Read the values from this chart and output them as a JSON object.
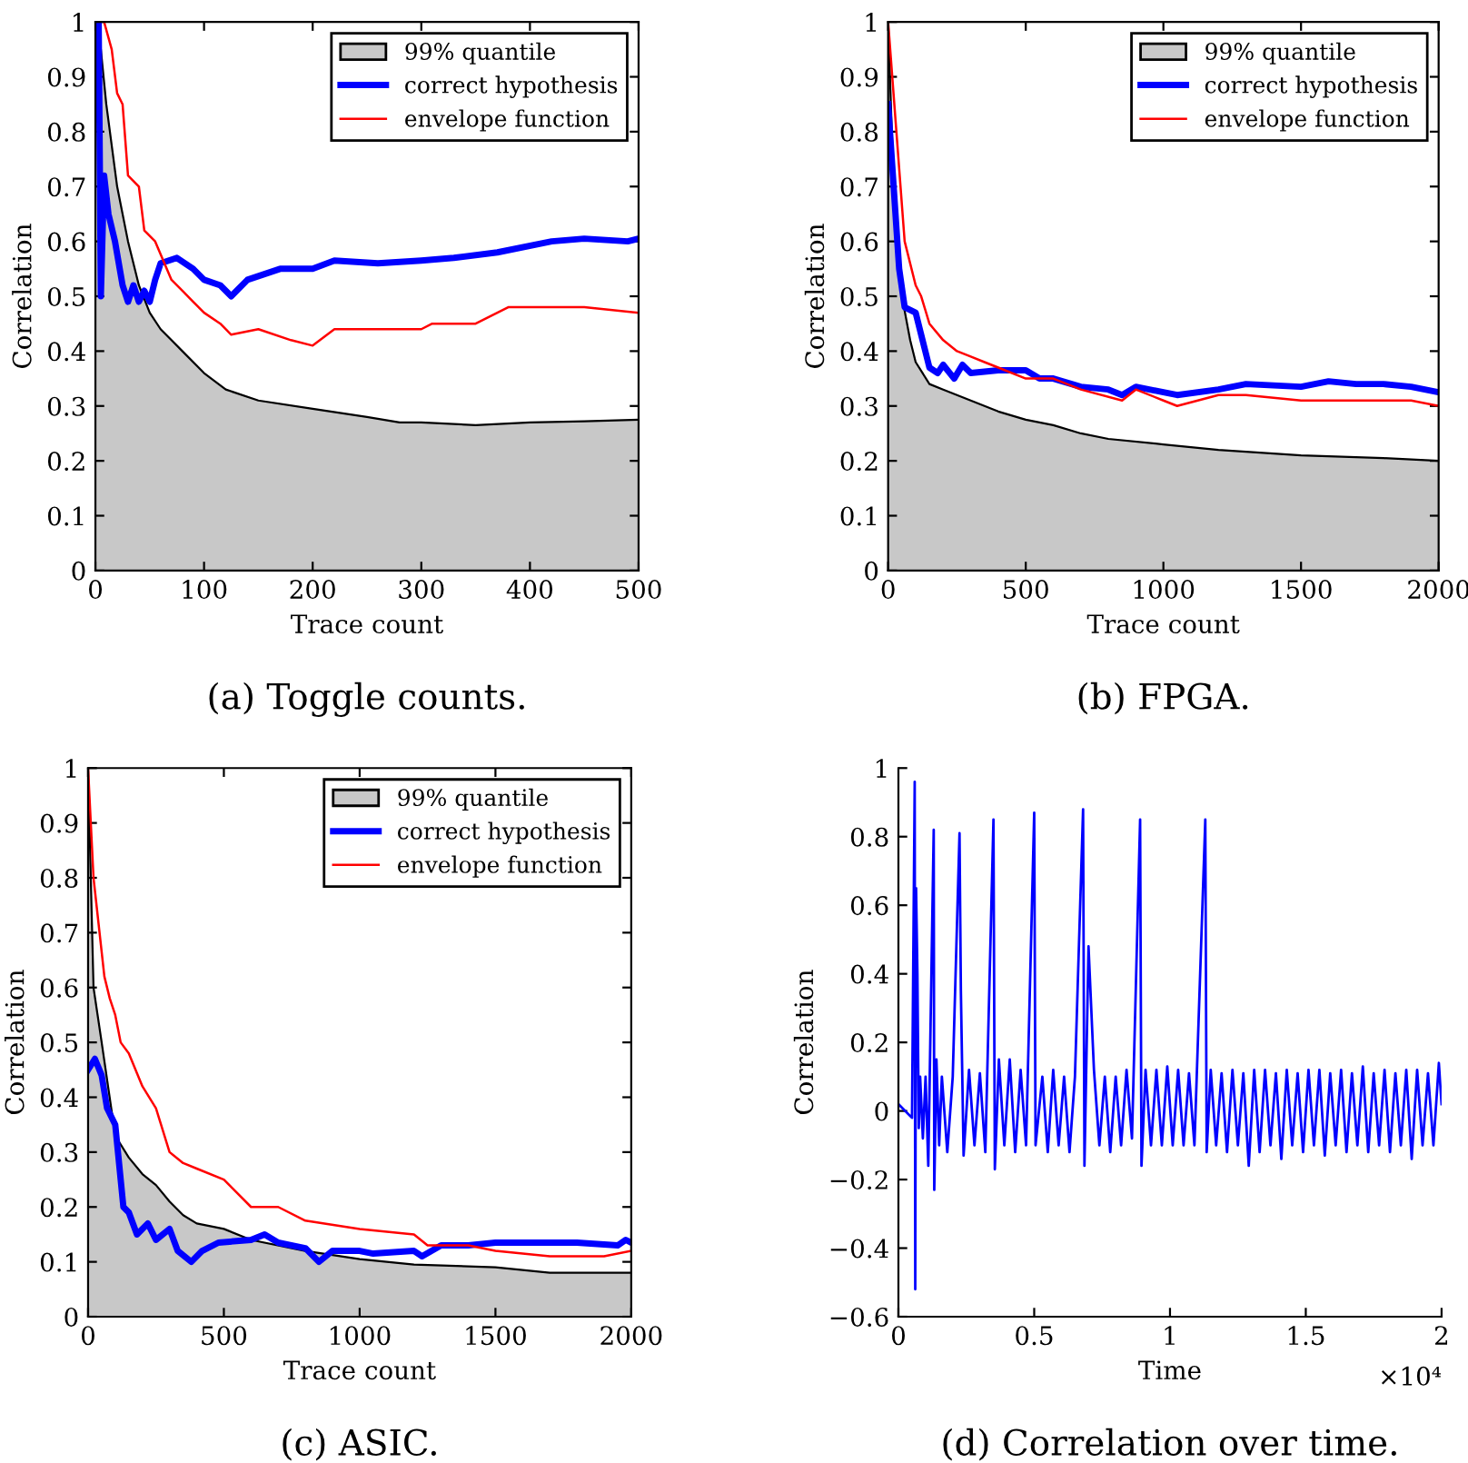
{
  "chart_data": [
    {
      "type": "line",
      "title": "(a) Toggle counts.",
      "xlabel": "Trace count",
      "ylabel": "Correlation",
      "xlim": [
        0,
        500
      ],
      "xticks": [
        0,
        100,
        200,
        300,
        400,
        500
      ],
      "ylim": [
        0,
        1
      ],
      "yticks": [
        0,
        0.1,
        0.2,
        0.3,
        0.4,
        0.5,
        0.6,
        0.7,
        0.8,
        0.9,
        1
      ],
      "legend": "top right",
      "grid": false,
      "series": [
        {
          "name": "99% quantile",
          "type": "area",
          "color": "#c8c8c8",
          "x": [
            0,
            5,
            10,
            20,
            30,
            40,
            50,
            60,
            70,
            80,
            100,
            120,
            150,
            200,
            250,
            280,
            300,
            350,
            400,
            450,
            500
          ],
          "values": [
            1.0,
            0.95,
            0.85,
            0.7,
            0.6,
            0.52,
            0.47,
            0.44,
            0.42,
            0.4,
            0.36,
            0.33,
            0.31,
            0.295,
            0.28,
            0.27,
            0.27,
            0.265,
            0.27,
            0.272,
            0.275
          ]
        },
        {
          "name": "correct hypothesis",
          "color": "#0000ff",
          "x": [
            3,
            5,
            8,
            12,
            18,
            25,
            30,
            35,
            40,
            45,
            50,
            55,
            60,
            75,
            90,
            100,
            115,
            125,
            140,
            170,
            200,
            220,
            260,
            300,
            330,
            370,
            420,
            450,
            490,
            500
          ],
          "values": [
            1.0,
            0.5,
            0.72,
            0.65,
            0.6,
            0.52,
            0.49,
            0.52,
            0.49,
            0.51,
            0.49,
            0.53,
            0.56,
            0.57,
            0.55,
            0.53,
            0.52,
            0.5,
            0.53,
            0.55,
            0.55,
            0.565,
            0.56,
            0.565,
            0.57,
            0.58,
            0.6,
            0.605,
            0.6,
            0.605
          ]
        },
        {
          "name": "envelope function",
          "color": "#ff0000",
          "x": [
            8,
            15,
            20,
            25,
            30,
            40,
            45,
            55,
            70,
            80,
            90,
            100,
            115,
            125,
            150,
            180,
            200,
            220,
            250,
            300,
            310,
            350,
            380,
            420,
            450,
            500
          ],
          "values": [
            1.0,
            0.95,
            0.87,
            0.85,
            0.72,
            0.7,
            0.62,
            0.6,
            0.53,
            0.51,
            0.49,
            0.47,
            0.45,
            0.43,
            0.44,
            0.42,
            0.41,
            0.44,
            0.44,
            0.44,
            0.45,
            0.45,
            0.48,
            0.48,
            0.48,
            0.47
          ]
        }
      ]
    },
    {
      "type": "line",
      "title": "(b) FPGA.",
      "xlabel": "Trace count",
      "ylabel": "Correlation",
      "xlim": [
        0,
        2000
      ],
      "xticks": [
        0,
        500,
        1000,
        1500,
        2000
      ],
      "ylim": [
        0,
        1
      ],
      "yticks": [
        0,
        0.1,
        0.2,
        0.3,
        0.4,
        0.5,
        0.6,
        0.7,
        0.8,
        0.9,
        1
      ],
      "legend": "top right",
      "grid": false,
      "series": [
        {
          "name": "99% quantile",
          "type": "area",
          "color": "#c8c8c8",
          "x": [
            0,
            20,
            50,
            80,
            100,
            150,
            200,
            300,
            400,
            500,
            600,
            700,
            800,
            1000,
            1200,
            1500,
            1800,
            2000
          ],
          "values": [
            1.0,
            0.7,
            0.5,
            0.42,
            0.38,
            0.34,
            0.33,
            0.31,
            0.29,
            0.275,
            0.265,
            0.25,
            0.24,
            0.23,
            0.22,
            0.21,
            0.205,
            0.2
          ]
        },
        {
          "name": "correct hypothesis",
          "color": "#0000ff",
          "x": [
            0,
            20,
            40,
            60,
            100,
            120,
            150,
            180,
            200,
            240,
            270,
            300,
            400,
            500,
            550,
            600,
            700,
            800,
            850,
            900,
            1000,
            1050,
            1200,
            1300,
            1500,
            1600,
            1700,
            1800,
            1900,
            2000
          ],
          "values": [
            0.85,
            0.7,
            0.55,
            0.48,
            0.47,
            0.43,
            0.37,
            0.36,
            0.375,
            0.35,
            0.375,
            0.36,
            0.365,
            0.365,
            0.35,
            0.35,
            0.335,
            0.33,
            0.32,
            0.335,
            0.325,
            0.32,
            0.33,
            0.34,
            0.335,
            0.345,
            0.34,
            0.34,
            0.335,
            0.325
          ]
        },
        {
          "name": "envelope function",
          "color": "#ff0000",
          "x": [
            0,
            30,
            60,
            100,
            120,
            150,
            200,
            250,
            300,
            350,
            400,
            500,
            600,
            700,
            850,
            900,
            1000,
            1050,
            1200,
            1300,
            1500,
            1700,
            1900,
            2000
          ],
          "values": [
            1.0,
            0.8,
            0.6,
            0.52,
            0.5,
            0.45,
            0.42,
            0.4,
            0.39,
            0.38,
            0.37,
            0.35,
            0.35,
            0.33,
            0.31,
            0.33,
            0.31,
            0.3,
            0.32,
            0.32,
            0.31,
            0.31,
            0.31,
            0.3
          ]
        }
      ]
    },
    {
      "type": "line",
      "title": "(c) ASIC.",
      "xlabel": "Trace count",
      "ylabel": "Correlation",
      "xlim": [
        0,
        2000
      ],
      "xticks": [
        0,
        500,
        1000,
        1500,
        2000
      ],
      "ylim": [
        0,
        1
      ],
      "yticks": [
        0,
        0.1,
        0.2,
        0.3,
        0.4,
        0.5,
        0.6,
        0.7,
        0.8,
        0.9,
        1
      ],
      "legend": "top right",
      "grid": false,
      "series": [
        {
          "name": "99% quantile",
          "type": "area",
          "color": "#c8c8c8",
          "x": [
            0,
            20,
            50,
            100,
            150,
            200,
            250,
            300,
            350,
            400,
            500,
            600,
            800,
            1000,
            1200,
            1500,
            1700,
            2000
          ],
          "values": [
            1.0,
            0.6,
            0.5,
            0.33,
            0.29,
            0.26,
            0.24,
            0.21,
            0.185,
            0.17,
            0.16,
            0.14,
            0.12,
            0.105,
            0.095,
            0.09,
            0.08,
            0.08
          ]
        },
        {
          "name": "correct hypothesis",
          "color": "#0000ff",
          "x": [
            0,
            25,
            50,
            70,
            100,
            130,
            150,
            180,
            220,
            250,
            300,
            330,
            380,
            420,
            480,
            600,
            650,
            700,
            800,
            850,
            900,
            1000,
            1050,
            1200,
            1230,
            1300,
            1400,
            1500,
            1600,
            1800,
            1950,
            1980,
            2000
          ],
          "values": [
            0.45,
            0.47,
            0.44,
            0.38,
            0.35,
            0.2,
            0.19,
            0.15,
            0.17,
            0.14,
            0.16,
            0.12,
            0.1,
            0.12,
            0.135,
            0.14,
            0.15,
            0.135,
            0.125,
            0.1,
            0.12,
            0.12,
            0.115,
            0.12,
            0.11,
            0.13,
            0.13,
            0.135,
            0.135,
            0.135,
            0.13,
            0.14,
            0.135
          ]
        },
        {
          "name": "envelope function",
          "color": "#ff0000",
          "x": [
            0,
            20,
            60,
            80,
            100,
            120,
            150,
            200,
            250,
            300,
            350,
            400,
            500,
            600,
            700,
            800,
            1000,
            1200,
            1250,
            1400,
            1500,
            1700,
            1900,
            2000
          ],
          "values": [
            1.0,
            0.8,
            0.62,
            0.58,
            0.55,
            0.5,
            0.48,
            0.42,
            0.38,
            0.3,
            0.28,
            0.27,
            0.25,
            0.2,
            0.2,
            0.175,
            0.16,
            0.15,
            0.13,
            0.13,
            0.12,
            0.11,
            0.11,
            0.12
          ]
        }
      ]
    },
    {
      "type": "line",
      "title": "(d) Correlation over time.",
      "xlabel": "Time",
      "ylabel": "Correlation",
      "xlim": [
        0,
        2
      ],
      "xticks": [
        0,
        0.5,
        1,
        1.5,
        2
      ],
      "ylim": [
        -0.6,
        1
      ],
      "yticks": [
        {
          "value": -0.6,
          "label": "−0.6"
        },
        {
          "value": -0.4,
          "label": "−0.4"
        },
        {
          "value": -0.2,
          "label": "−0.2"
        },
        0,
        0.2,
        0.4,
        0.6,
        0.8,
        1
      ],
      "annotations": [
        "×10⁴"
      ],
      "grid": false,
      "legend": false,
      "series": [
        {
          "color": "#0000ff",
          "x": [
            0,
            0.05,
            0.06,
            0.062,
            0.065,
            0.07,
            0.075,
            0.08,
            0.09,
            0.1,
            0.11,
            0.13,
            0.132,
            0.14,
            0.15,
            0.16,
            0.18,
            0.2,
            0.225,
            0.23,
            0.24,
            0.26,
            0.28,
            0.3,
            0.32,
            0.35,
            0.355,
            0.37,
            0.39,
            0.41,
            0.43,
            0.45,
            0.47,
            0.5,
            0.505,
            0.53,
            0.55,
            0.57,
            0.59,
            0.61,
            0.63,
            0.65,
            0.68,
            0.685,
            0.7,
            0.72,
            0.74,
            0.76,
            0.78,
            0.8,
            0.82,
            0.84,
            0.86,
            0.89,
            0.895,
            0.91,
            0.93,
            0.95,
            0.97,
            0.99,
            1.01,
            1.03,
            1.05,
            1.07,
            1.09,
            1.13,
            1.135,
            1.15,
            1.17,
            1.19,
            1.21,
            1.23,
            1.25,
            1.27,
            1.29,
            1.31,
            1.33,
            1.35,
            1.37,
            1.39,
            1.41,
            1.43,
            1.45,
            1.47,
            1.49,
            1.51,
            1.53,
            1.55,
            1.57,
            1.59,
            1.61,
            1.63,
            1.65,
            1.67,
            1.69,
            1.71,
            1.73,
            1.75,
            1.77,
            1.79,
            1.81,
            1.83,
            1.85,
            1.87,
            1.89,
            1.91,
            1.93,
            1.95,
            1.97,
            1.99,
            2
          ],
          "values": [
            0.02,
            -0.02,
            0.96,
            -0.52,
            0.65,
            0.4,
            -0.05,
            0.1,
            -0.08,
            0.1,
            -0.16,
            0.82,
            -0.23,
            0.15,
            -0.1,
            0.1,
            -0.12,
            0.1,
            0.81,
            0.35,
            -0.13,
            0.12,
            -0.1,
            0.11,
            -0.12,
            0.85,
            -0.17,
            0.15,
            -0.1,
            0.15,
            -0.12,
            0.12,
            -0.1,
            0.87,
            -0.1,
            0.1,
            -0.12,
            0.12,
            -0.1,
            0.1,
            -0.12,
            0.1,
            0.88,
            -0.16,
            0.48,
            0.12,
            -0.1,
            0.1,
            -0.12,
            0.1,
            -0.1,
            0.12,
            -0.08,
            0.85,
            -0.16,
            0.12,
            -0.1,
            0.12,
            -0.1,
            0.13,
            -0.1,
            0.12,
            -0.1,
            0.11,
            -0.1,
            0.85,
            -0.12,
            0.12,
            -0.1,
            0.11,
            -0.12,
            0.12,
            -0.1,
            0.11,
            -0.16,
            0.12,
            -0.12,
            0.12,
            -0.1,
            0.11,
            -0.14,
            0.12,
            -0.1,
            0.11,
            -0.12,
            0.12,
            -0.1,
            0.12,
            -0.13,
            0.11,
            -0.1,
            0.12,
            -0.12,
            0.11,
            -0.1,
            0.13,
            -0.12,
            0.11,
            -0.1,
            0.12,
            -0.12,
            0.11,
            -0.1,
            0.12,
            -0.14,
            0.12,
            -0.1,
            0.11,
            -0.1,
            0.14,
            0.02
          ]
        }
      ]
    }
  ]
}
